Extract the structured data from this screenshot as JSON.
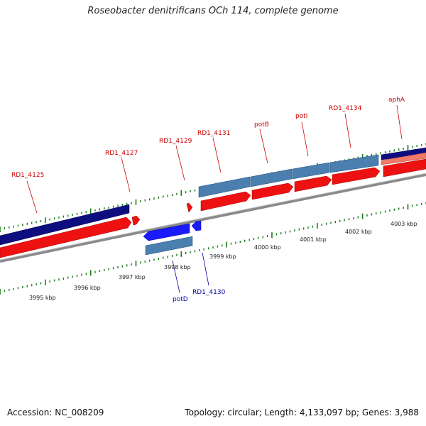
{
  "title": "Roseobacter denitrificans OCh 114, complete genome",
  "footer": {
    "accession": "Accession: NC_008209",
    "summary": "Topology: circular; Length: 4,133,097 bp; Genes: 3,988"
  },
  "colors": {
    "tick": "#1a7a1a",
    "forward_gene": "#ee1111",
    "reverse_gene": "#1a1aff",
    "cds_dark": "#0a0a7a",
    "cds_light": "#4a7fb0",
    "backbone": "#888888",
    "label_forward": "#cc0000",
    "label_reverse": "#0000aa"
  },
  "kbp_labels": [
    "3995 kbp",
    "3996 kbp",
    "3997 kbp",
    "3998 kbp",
    "3999 kbp",
    "4000 kbp",
    "4001 kbp",
    "4002 kbp",
    "4003 kbp"
  ],
  "gene_labels_top": [
    "RD1_4125",
    "RD1_4127",
    "RD1_4129",
    "RD1_4131",
    "potB",
    "potI",
    "RD1_4134",
    "aphA"
  ],
  "gene_labels_bottom": [
    "potD",
    "RD1_4130"
  ]
}
